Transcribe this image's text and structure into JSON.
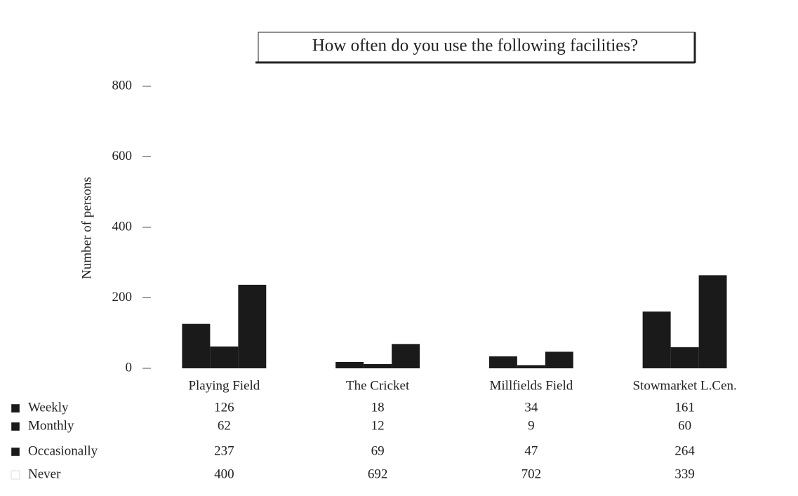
{
  "chart_data": {
    "type": "bar",
    "title": "How often do you use the following facilities?",
    "ylabel": "Number of persons",
    "categories": [
      "Playing Field",
      "The Cricket",
      "Millfields Field",
      "Stowmarket L.Cen."
    ],
    "series": [
      {
        "name": "Weekly",
        "color": "#1a1a1a",
        "values": [
          126,
          18,
          34,
          161
        ]
      },
      {
        "name": "Monthly",
        "color": "#1a1a1a",
        "values": [
          62,
          12,
          9,
          60
        ]
      },
      {
        "name": "Occasionally",
        "color": "#1a1a1a",
        "values": [
          237,
          69,
          47,
          264
        ]
      },
      {
        "name": "Never",
        "color": "#ffffff",
        "values": [
          400,
          692,
          702,
          339
        ]
      }
    ],
    "ylim": [
      0,
      800
    ],
    "yticks": [
      0,
      200,
      400,
      600,
      800
    ],
    "grid": false
  }
}
